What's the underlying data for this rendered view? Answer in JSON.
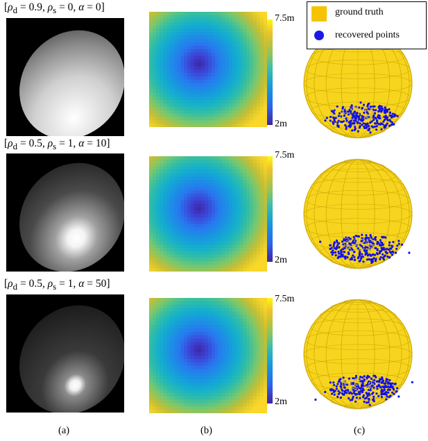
{
  "rows": [
    {
      "label_html": "[<i>ρ</i><sub>d</sub> = 0.9, <i>ρ</i><sub>s</sub> = 0, <i>α</i> = 0]",
      "label_text": "[ρd = 0.9, ρs = 0, α = 0]",
      "rho_d": 0.9,
      "rho_s": 0,
      "alpha": 0
    },
    {
      "label_html": "[<i>ρ</i><sub>d</sub> = 0.5, <i>ρ</i><sub>s</sub> = 1, <i>α</i> = 10]",
      "label_text": "[ρd = 0.5, ρs = 1, α = 10]",
      "rho_d": 0.5,
      "rho_s": 1,
      "alpha": 10
    },
    {
      "label_html": "[<i>ρ</i><sub>d</sub> = 0.5, <i>ρ</i><sub>s</sub> = 1, <i>α</i> = 50]",
      "label_text": "[ρd = 0.5, ρs = 1, α = 50]",
      "rho_d": 0.5,
      "rho_s": 1,
      "alpha": 50
    }
  ],
  "colorbar": {
    "max_label": "7.5m",
    "min_label": "2m"
  },
  "legend": {
    "ground_truth": {
      "label": "ground truth",
      "color": "#f5c400"
    },
    "recovered": {
      "label": "recovered points",
      "color": "#1a1ae6"
    }
  },
  "captions": [
    "(a)",
    "(b)",
    "(c)"
  ],
  "colors": {
    "sphere_fill": "#f7d51e",
    "sphere_line": "#c9a400",
    "points": "#1010e8"
  }
}
